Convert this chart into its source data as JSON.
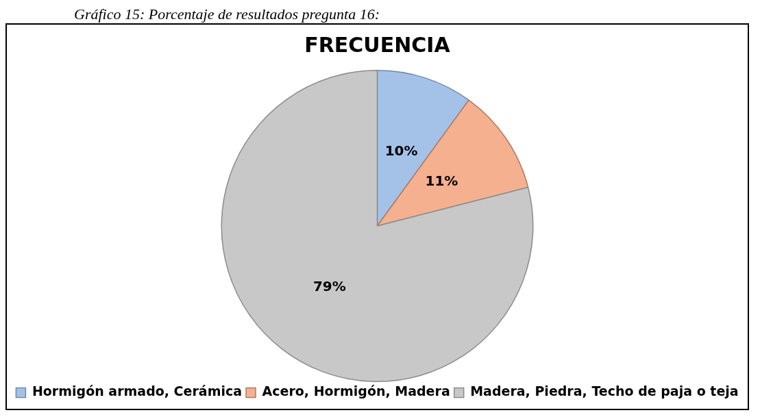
{
  "chart_data": {
    "type": "pie",
    "title": "FRECUENCIA",
    "annotations": [
      "Gráfico 15: Porcentaje de resultados pregunta 16:"
    ],
    "categories": [
      "Hormigón armado, Cerámica",
      "Acero, Hormigón, Madera",
      "Madera, Piedra, Techo de paja o teja"
    ],
    "values": [
      10,
      11,
      79
    ],
    "colors": [
      "#a4c2e8",
      "#f5b090",
      "#c8c8c8"
    ],
    "value_labels": [
      "10%",
      "11%",
      "79%"
    ],
    "legend": "bottom"
  }
}
